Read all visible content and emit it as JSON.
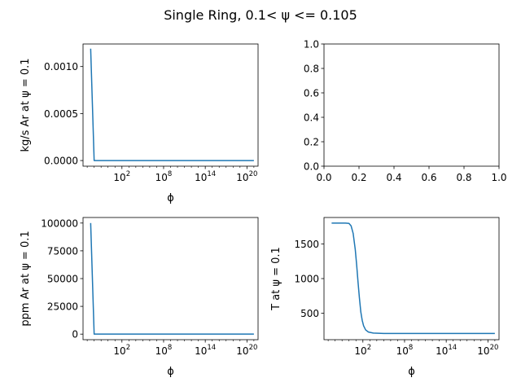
{
  "figure": {
    "suptitle": "Single Ring, 0.1< ψ <= 0.105"
  },
  "chart_data": [
    {
      "type": "line",
      "title": "",
      "xlabel": "ϕ",
      "ylabel": "kg/s Ar at ψ = 0.1",
      "xscale": "log",
      "xlim_exp": [
        -3.6,
        21.6
      ],
      "xticks": [
        {
          "exp": 2,
          "label": "10^2"
        },
        {
          "exp": 8,
          "label": "10^8"
        },
        {
          "exp": 14,
          "label": "10^14"
        },
        {
          "exp": 20,
          "label": "10^20"
        }
      ],
      "ylim": [
        -6e-05,
        0.00124
      ],
      "yticks": [
        {
          "v": 0.0,
          "label": "0.0000"
        },
        {
          "v": 0.0005,
          "label": "0.0005"
        },
        {
          "v": 0.001,
          "label": "0.0010"
        }
      ],
      "series": [
        {
          "color": "#1f77b4",
          "points": [
            [
              -2.5,
              0.00119
            ],
            [
              -2.0,
              0.0
            ],
            [
              21,
              0.0
            ]
          ]
        }
      ]
    },
    {
      "type": "line",
      "title": "",
      "xlabel": "",
      "ylabel": "",
      "xscale": "linear",
      "xlim": [
        0,
        1
      ],
      "xticks": [
        {
          "v": 0,
          "label": "0.0"
        },
        {
          "v": 0.2,
          "label": "0.2"
        },
        {
          "v": 0.4,
          "label": "0.4"
        },
        {
          "v": 0.6,
          "label": "0.6"
        },
        {
          "v": 0.8,
          "label": "0.8"
        },
        {
          "v": 1,
          "label": "1.0"
        }
      ],
      "ylim": [
        0,
        1
      ],
      "yticks": [
        {
          "v": 0,
          "label": "0.0"
        },
        {
          "v": 0.2,
          "label": "0.2"
        },
        {
          "v": 0.4,
          "label": "0.4"
        },
        {
          "v": 0.6,
          "label": "0.6"
        },
        {
          "v": 0.8,
          "label": "0.8"
        },
        {
          "v": 1,
          "label": "1.0"
        }
      ],
      "series": []
    },
    {
      "type": "line",
      "title": "",
      "xlabel": "ϕ",
      "ylabel": "ppm Ar at ψ = 0.1",
      "xscale": "log",
      "xlim_exp": [
        -3.6,
        21.6
      ],
      "xticks": [
        {
          "exp": 2,
          "label": "10^2"
        },
        {
          "exp": 8,
          "label": "10^8"
        },
        {
          "exp": 14,
          "label": "10^14"
        },
        {
          "exp": 20,
          "label": "10^20"
        }
      ],
      "ylim": [
        -5000,
        105000
      ],
      "yticks": [
        {
          "v": 0,
          "label": "0"
        },
        {
          "v": 25000,
          "label": "25000"
        },
        {
          "v": 50000,
          "label": "50000"
        },
        {
          "v": 75000,
          "label": "75000"
        },
        {
          "v": 100000,
          "label": "100000"
        }
      ],
      "series": [
        {
          "color": "#1f77b4",
          "points": [
            [
              -2.5,
              100000
            ],
            [
              -2.0,
              0
            ],
            [
              21,
              0
            ]
          ]
        }
      ]
    },
    {
      "type": "line",
      "title": "",
      "xlabel": "ϕ",
      "ylabel": "T at ψ = 0.1",
      "xscale": "log",
      "xlim_exp": [
        -3.6,
        21.6
      ],
      "xticks": [
        {
          "exp": 2,
          "label": "10^2"
        },
        {
          "exp": 8,
          "label": "10^8"
        },
        {
          "exp": 14,
          "label": "10^14"
        },
        {
          "exp": 20,
          "label": "10^20"
        }
      ],
      "ylim": [
        120,
        1880
      ],
      "yticks": [
        {
          "v": 500,
          "label": "500"
        },
        {
          "v": 1000,
          "label": "1000"
        },
        {
          "v": 1500,
          "label": "1500"
        }
      ],
      "series": [
        {
          "color": "#1f77b4",
          "points": [
            [
              -2.5,
              1800
            ],
            [
              -0.5,
              1800
            ],
            [
              0.0,
              1795
            ],
            [
              0.3,
              1760
            ],
            [
              0.6,
              1650
            ],
            [
              0.9,
              1420
            ],
            [
              1.1,
              1200
            ],
            [
              1.3,
              950
            ],
            [
              1.5,
              720
            ],
            [
              1.7,
              520
            ],
            [
              1.9,
              400
            ],
            [
              2.1,
              320
            ],
            [
              2.4,
              260
            ],
            [
              2.8,
              230
            ],
            [
              3.5,
              215
            ],
            [
              5,
              210
            ],
            [
              21,
              210
            ]
          ]
        }
      ]
    }
  ]
}
